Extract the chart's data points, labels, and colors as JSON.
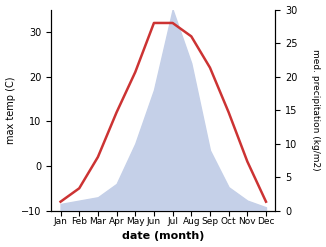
{
  "months": [
    "Jan",
    "Feb",
    "Mar",
    "Apr",
    "May",
    "Jun",
    "Jul",
    "Aug",
    "Sep",
    "Oct",
    "Nov",
    "Dec"
  ],
  "month_indices": [
    1,
    2,
    3,
    4,
    5,
    6,
    7,
    8,
    9,
    10,
    11,
    12
  ],
  "temperature": [
    -8,
    -5,
    2,
    12,
    21,
    32,
    32,
    29,
    22,
    12,
    1,
    -8
  ],
  "precipitation": [
    1.0,
    1.5,
    2.0,
    4.0,
    10.0,
    18.0,
    30.0,
    22.0,
    9.0,
    3.5,
    1.5,
    0.5
  ],
  "temp_color": "#cc3333",
  "precip_fill_color": "#c5d0e8",
  "ylabel_left": "max temp (C)",
  "ylabel_right": "med. precipitation (kg/m2)",
  "xlabel": "date (month)",
  "ylim_left": [
    -10,
    35
  ],
  "ylim_right": [
    0,
    30
  ],
  "yticks_left": [
    -10,
    0,
    10,
    20,
    30
  ],
  "yticks_right": [
    0,
    5,
    10,
    15,
    20,
    25,
    30
  ],
  "fig_width": 3.26,
  "fig_height": 2.47,
  "dpi": 100
}
